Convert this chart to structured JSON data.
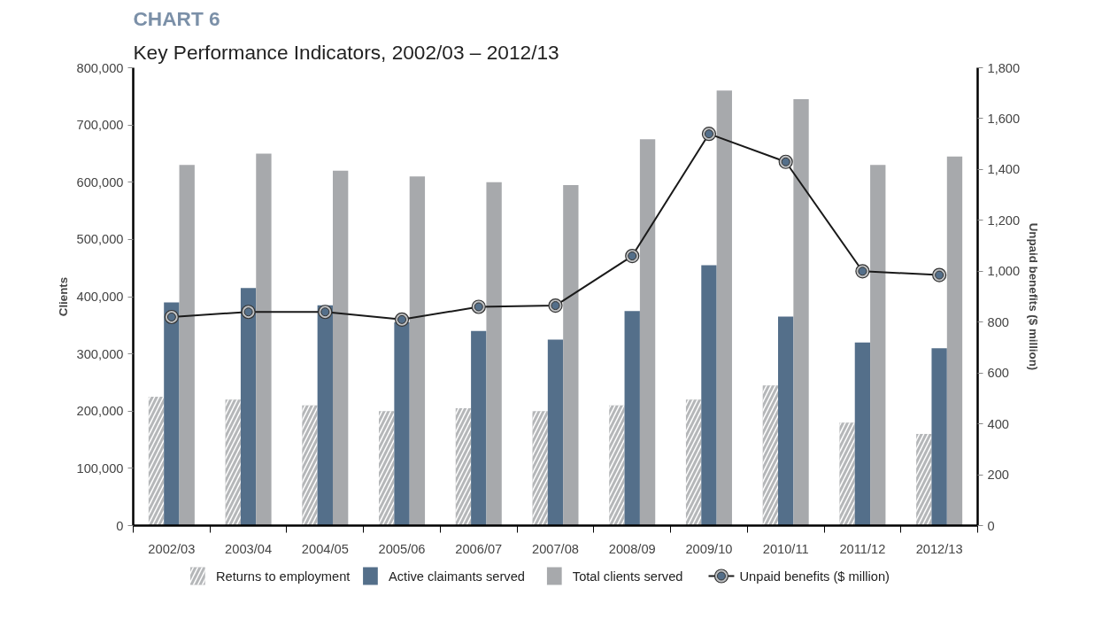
{
  "chart_data": {
    "type": "bar",
    "title": "CHART 6",
    "subtitle": "Key Performance Indicators, 2002/03 – 2012/13",
    "ylabel": "Clients",
    "y2label": "Unpaid benefits ($ million)",
    "categories": [
      "2002/03",
      "2003/04",
      "2004/05",
      "2005/06",
      "2006/07",
      "2007/08",
      "2008/09",
      "2009/10",
      "2010/11",
      "2011/12",
      "2012/13"
    ],
    "series": [
      {
        "name": "Returns to employment",
        "color": "#b5b7b9",
        "values": [
          225000,
          220000,
          210000,
          200000,
          205000,
          200000,
          210000,
          220000,
          245000,
          180000,
          160000
        ]
      },
      {
        "name": "Active claimants served",
        "color": "#546f8a",
        "values": [
          390000,
          415000,
          385000,
          355000,
          340000,
          325000,
          375000,
          455000,
          365000,
          320000,
          310000
        ]
      },
      {
        "name": "Total clients served",
        "color": "#a7a9ac",
        "values": [
          630000,
          650000,
          620000,
          610000,
          600000,
          595000,
          675000,
          760000,
          745000,
          630000,
          645000
        ]
      },
      {
        "name": "Unpaid benefits ($ million)",
        "type": "line",
        "axis": "y2",
        "color": "#1a1a1a",
        "marker": "circle",
        "values": [
          820,
          840,
          840,
          810,
          860,
          865,
          1060,
          1540,
          1430,
          1000,
          985
        ]
      }
    ],
    "ylim": [
      0,
      800000
    ],
    "yticks": [
      {
        "value": 0,
        "label": "0"
      },
      {
        "value": 100000,
        "label": "100,000"
      },
      {
        "value": 200000,
        "label": "200,000"
      },
      {
        "value": 300000,
        "label": "300,000"
      },
      {
        "value": 400000,
        "label": "400,000"
      },
      {
        "value": 500000,
        "label": "500,000"
      },
      {
        "value": 600000,
        "label": "600,000"
      },
      {
        "value": 700000,
        "label": "700,000"
      },
      {
        "value": 800000,
        "label": "800,000"
      }
    ],
    "y2lim": [
      0,
      1800
    ],
    "y2ticks": [
      0,
      200,
      400,
      600,
      800,
      {
        "value": 1000,
        "label": "1,000"
      },
      {
        "value": 1200,
        "label": "1,200"
      },
      {
        "value": 1400,
        "label": "1,400"
      },
      {
        "value": 1600,
        "label": "1,600"
      },
      {
        "value": 1800,
        "label": "1,800"
      }
    ],
    "grid": false,
    "legend": "bottom"
  }
}
